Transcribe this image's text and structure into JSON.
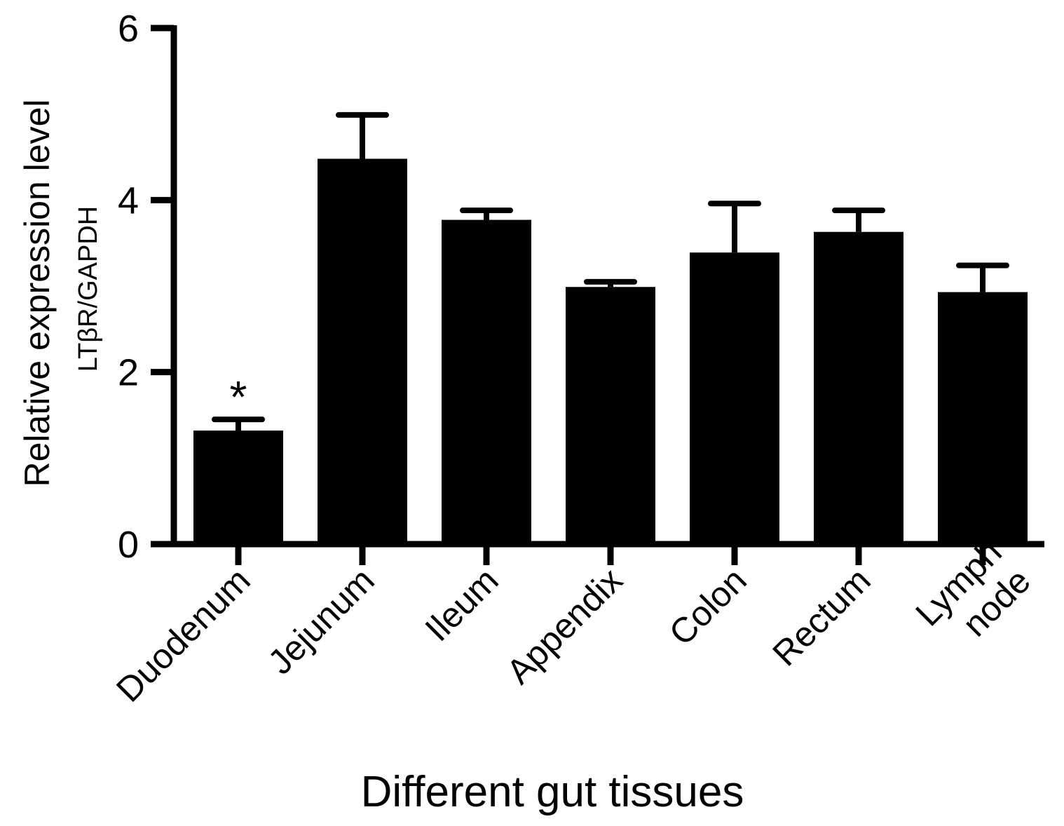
{
  "chart_data": {
    "type": "bar",
    "categories": [
      "Duodenum",
      "Jejunum",
      "Ileum",
      "Appendix",
      "Colon",
      "Rectum",
      "Lymph node"
    ],
    "category_lines": [
      [
        "Duodenum"
      ],
      [
        "Jejunum"
      ],
      [
        "Ileum"
      ],
      [
        "Appendix"
      ],
      [
        "Colon"
      ],
      [
        "Rectum"
      ],
      [
        "Lymph",
        "node"
      ]
    ],
    "values": [
      1.32,
      4.48,
      3.77,
      2.99,
      3.39,
      3.63,
      2.93
    ],
    "errors": [
      0.13,
      0.51,
      0.11,
      0.06,
      0.57,
      0.25,
      0.31
    ],
    "annotations": [
      "*",
      "",
      "",
      "",
      "",
      "",
      ""
    ],
    "ylabel": "Relative expression level",
    "ylabel_sub": "LTβR/GAPDH",
    "xlabel": "Different gut tissues",
    "ylim": [
      0,
      6
    ],
    "yticks": [
      0,
      2,
      4,
      6
    ],
    "grid": false,
    "bar_color": "#000000"
  }
}
